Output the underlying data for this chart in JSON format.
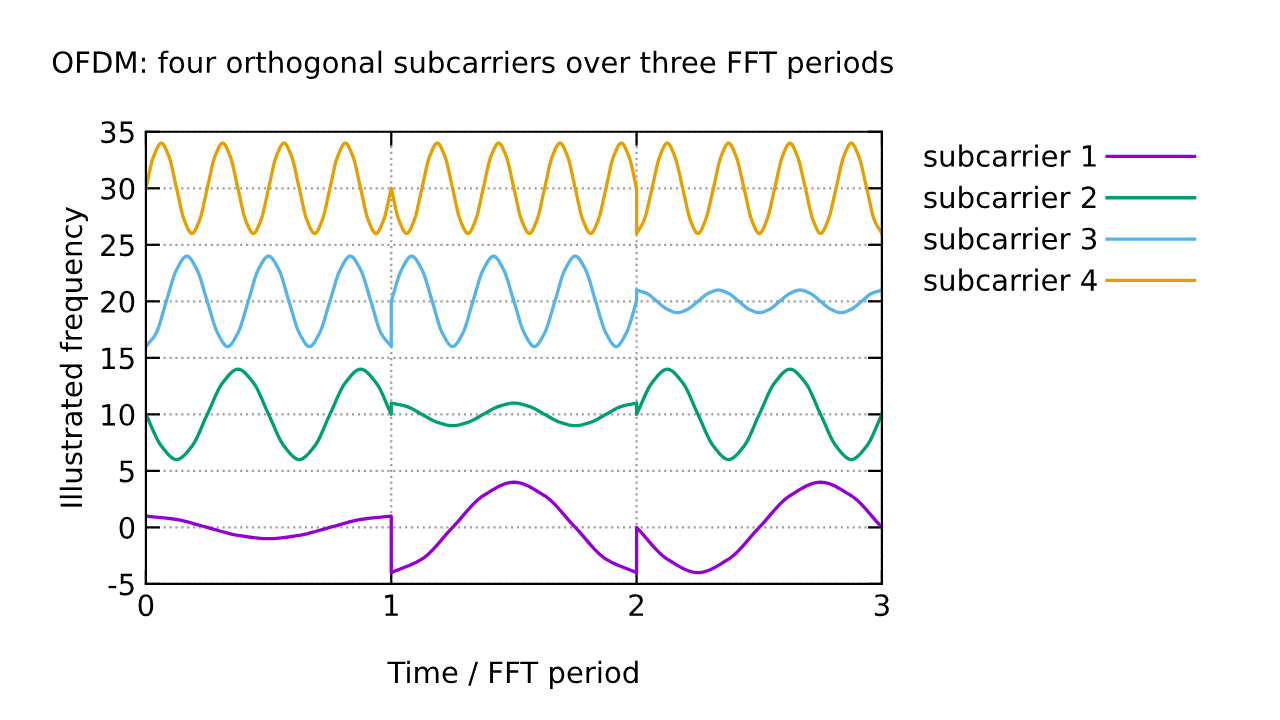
{
  "chart_data": {
    "type": "line",
    "title": "OFDM: four orthogonal subcarriers over three FFT periods",
    "xlabel": "Time / FFT period",
    "ylabel": "Illustrated frequency",
    "xlim": [
      0,
      3
    ],
    "xticks": [
      0,
      1,
      2,
      3
    ],
    "ylim": [
      -5,
      35
    ],
    "yticks": [
      -5,
      0,
      5,
      10,
      15,
      20,
      25,
      30,
      35
    ],
    "grid": true,
    "legend": "top right",
    "marker": "none",
    "line_style": "solid",
    "series": [
      {
        "name": "subcarrier 1",
        "color": "#9400d3",
        "x": [
          0,
          0.125,
          0.25,
          0.375,
          0.5,
          0.625,
          0.75,
          0.875,
          1,
          1,
          1.125,
          1.25,
          1.375,
          1.5,
          1.625,
          1.75,
          1.875,
          2,
          2,
          2.125,
          2.25,
          2.375,
          2.5,
          2.625,
          2.75,
          2.875,
          3
        ],
        "values": [
          1,
          0.7,
          0,
          -0.7,
          -1,
          -0.7,
          0,
          0.7,
          1,
          -4,
          -2.8,
          0,
          2.8,
          4,
          2.8,
          0,
          -2.8,
          -4,
          0,
          -2.8,
          -4,
          -2.8,
          0,
          2.8,
          4,
          2.8,
          0
        ]
      },
      {
        "name": "subcarrier 2",
        "color": "#009e73",
        "x": [
          0,
          0.063,
          0.125,
          0.188,
          0.25,
          0.313,
          0.375,
          0.438,
          0.5,
          0.563,
          0.625,
          0.688,
          0.75,
          0.813,
          0.875,
          0.938,
          1,
          1,
          1.063,
          1.125,
          1.188,
          1.25,
          1.313,
          1.375,
          1.438,
          1.5,
          1.563,
          1.625,
          1.688,
          1.75,
          1.813,
          1.875,
          1.938,
          2,
          2,
          2.063,
          2.125,
          2.188,
          2.25,
          2.313,
          2.375,
          2.438,
          2.5,
          2.563,
          2.625,
          2.688,
          2.75,
          2.813,
          2.875,
          2.938,
          3
        ],
        "values": [
          10,
          7.2,
          6,
          7.2,
          10,
          12.8,
          14,
          12.8,
          10,
          7.2,
          6,
          7.2,
          10,
          12.8,
          14,
          12.8,
          10,
          11,
          10.7,
          10,
          9.3,
          9,
          9.3,
          10,
          10.7,
          11,
          10.7,
          10,
          9.3,
          9,
          9.3,
          10,
          10.7,
          11,
          10,
          12.8,
          14,
          12.8,
          10,
          7.2,
          6,
          7.2,
          10,
          12.8,
          14,
          12.8,
          10,
          7.2,
          6,
          7.2,
          10
        ]
      },
      {
        "name": "subcarrier 3",
        "color": "#56b4e9",
        "x": [
          0,
          0.042,
          0.083,
          0.125,
          0.167,
          0.208,
          0.25,
          0.292,
          0.333,
          0.375,
          0.417,
          0.458,
          0.5,
          0.542,
          0.583,
          0.625,
          0.667,
          0.708,
          0.75,
          0.792,
          0.833,
          0.875,
          0.917,
          0.958,
          1,
          1,
          1.042,
          1.083,
          1.125,
          1.167,
          1.208,
          1.25,
          1.292,
          1.333,
          1.375,
          1.417,
          1.458,
          1.5,
          1.542,
          1.583,
          1.625,
          1.667,
          1.708,
          1.75,
          1.792,
          1.833,
          1.875,
          1.917,
          1.958,
          2,
          2,
          2.042,
          2.083,
          2.125,
          2.167,
          2.208,
          2.25,
          2.292,
          2.333,
          2.375,
          2.417,
          2.458,
          2.5,
          2.542,
          2.583,
          2.625,
          2.667,
          2.708,
          2.75,
          2.792,
          2.833,
          2.875,
          2.917,
          2.958,
          3
        ],
        "values": [
          16,
          17.2,
          20,
          22.8,
          24,
          22.8,
          20,
          17.2,
          16,
          17.2,
          20,
          22.8,
          24,
          22.8,
          20,
          17.2,
          16,
          17.2,
          20,
          22.8,
          24,
          22.8,
          20,
          17.2,
          16,
          20,
          22.8,
          24,
          22.8,
          20,
          17.2,
          16,
          17.2,
          20,
          22.8,
          24,
          22.8,
          20,
          17.2,
          16,
          17.2,
          20,
          22.8,
          24,
          22.8,
          20,
          17.2,
          16,
          17.2,
          20,
          21,
          20.7,
          20,
          19.3,
          19,
          19.3,
          20,
          20.7,
          21,
          20.7,
          20,
          19.3,
          19,
          19.3,
          20,
          20.7,
          21,
          20.7,
          20,
          19.3,
          19,
          19.3,
          20,
          20.7,
          21
        ]
      },
      {
        "name": "subcarrier 4",
        "color": "#e69f00",
        "x": [
          0,
          0.031,
          0.063,
          0.094,
          0.125,
          0.156,
          0.188,
          0.219,
          0.25,
          0.281,
          0.313,
          0.344,
          0.375,
          0.406,
          0.438,
          0.469,
          0.5,
          0.531,
          0.563,
          0.594,
          0.625,
          0.656,
          0.688,
          0.719,
          0.75,
          0.781,
          0.813,
          0.844,
          0.875,
          0.906,
          0.938,
          0.969,
          1,
          1,
          1.031,
          1.063,
          1.094,
          1.125,
          1.156,
          1.188,
          1.219,
          1.25,
          1.281,
          1.313,
          1.344,
          1.375,
          1.406,
          1.438,
          1.469,
          1.5,
          1.531,
          1.563,
          1.594,
          1.625,
          1.656,
          1.688,
          1.719,
          1.75,
          1.781,
          1.813,
          1.844,
          1.875,
          1.906,
          1.938,
          1.969,
          2,
          2,
          2.031,
          2.063,
          2.094,
          2.125,
          2.156,
          2.188,
          2.219,
          2.25,
          2.281,
          2.313,
          2.344,
          2.375,
          2.406,
          2.438,
          2.469,
          2.5,
          2.531,
          2.563,
          2.594,
          2.625,
          2.656,
          2.688,
          2.719,
          2.75,
          2.781,
          2.813,
          2.844,
          2.875,
          2.906,
          2.938,
          2.969,
          3
        ],
        "values": [
          30,
          32.8,
          34,
          32.8,
          30,
          27.2,
          26,
          27.2,
          30,
          32.8,
          34,
          32.8,
          30,
          27.2,
          26,
          27.2,
          30,
          32.8,
          34,
          32.8,
          30,
          27.2,
          26,
          27.2,
          30,
          32.8,
          34,
          32.8,
          30,
          27.2,
          26,
          27.2,
          30,
          30,
          27.2,
          26,
          27.2,
          30,
          32.8,
          34,
          32.8,
          30,
          27.2,
          26,
          27.2,
          30,
          32.8,
          34,
          32.8,
          30,
          27.2,
          26,
          27.2,
          30,
          32.8,
          34,
          32.8,
          30,
          27.2,
          26,
          27.2,
          30,
          32.8,
          34,
          32.8,
          30,
          26,
          27.2,
          30,
          32.8,
          34,
          32.8,
          30,
          27.2,
          26,
          27.2,
          30,
          32.8,
          34,
          32.8,
          30,
          27.2,
          26,
          27.2,
          30,
          32.8,
          34,
          32.8,
          30,
          27.2,
          26,
          27.2,
          30,
          32.8,
          34,
          32.8,
          30,
          27.2,
          26
        ]
      }
    ]
  }
}
